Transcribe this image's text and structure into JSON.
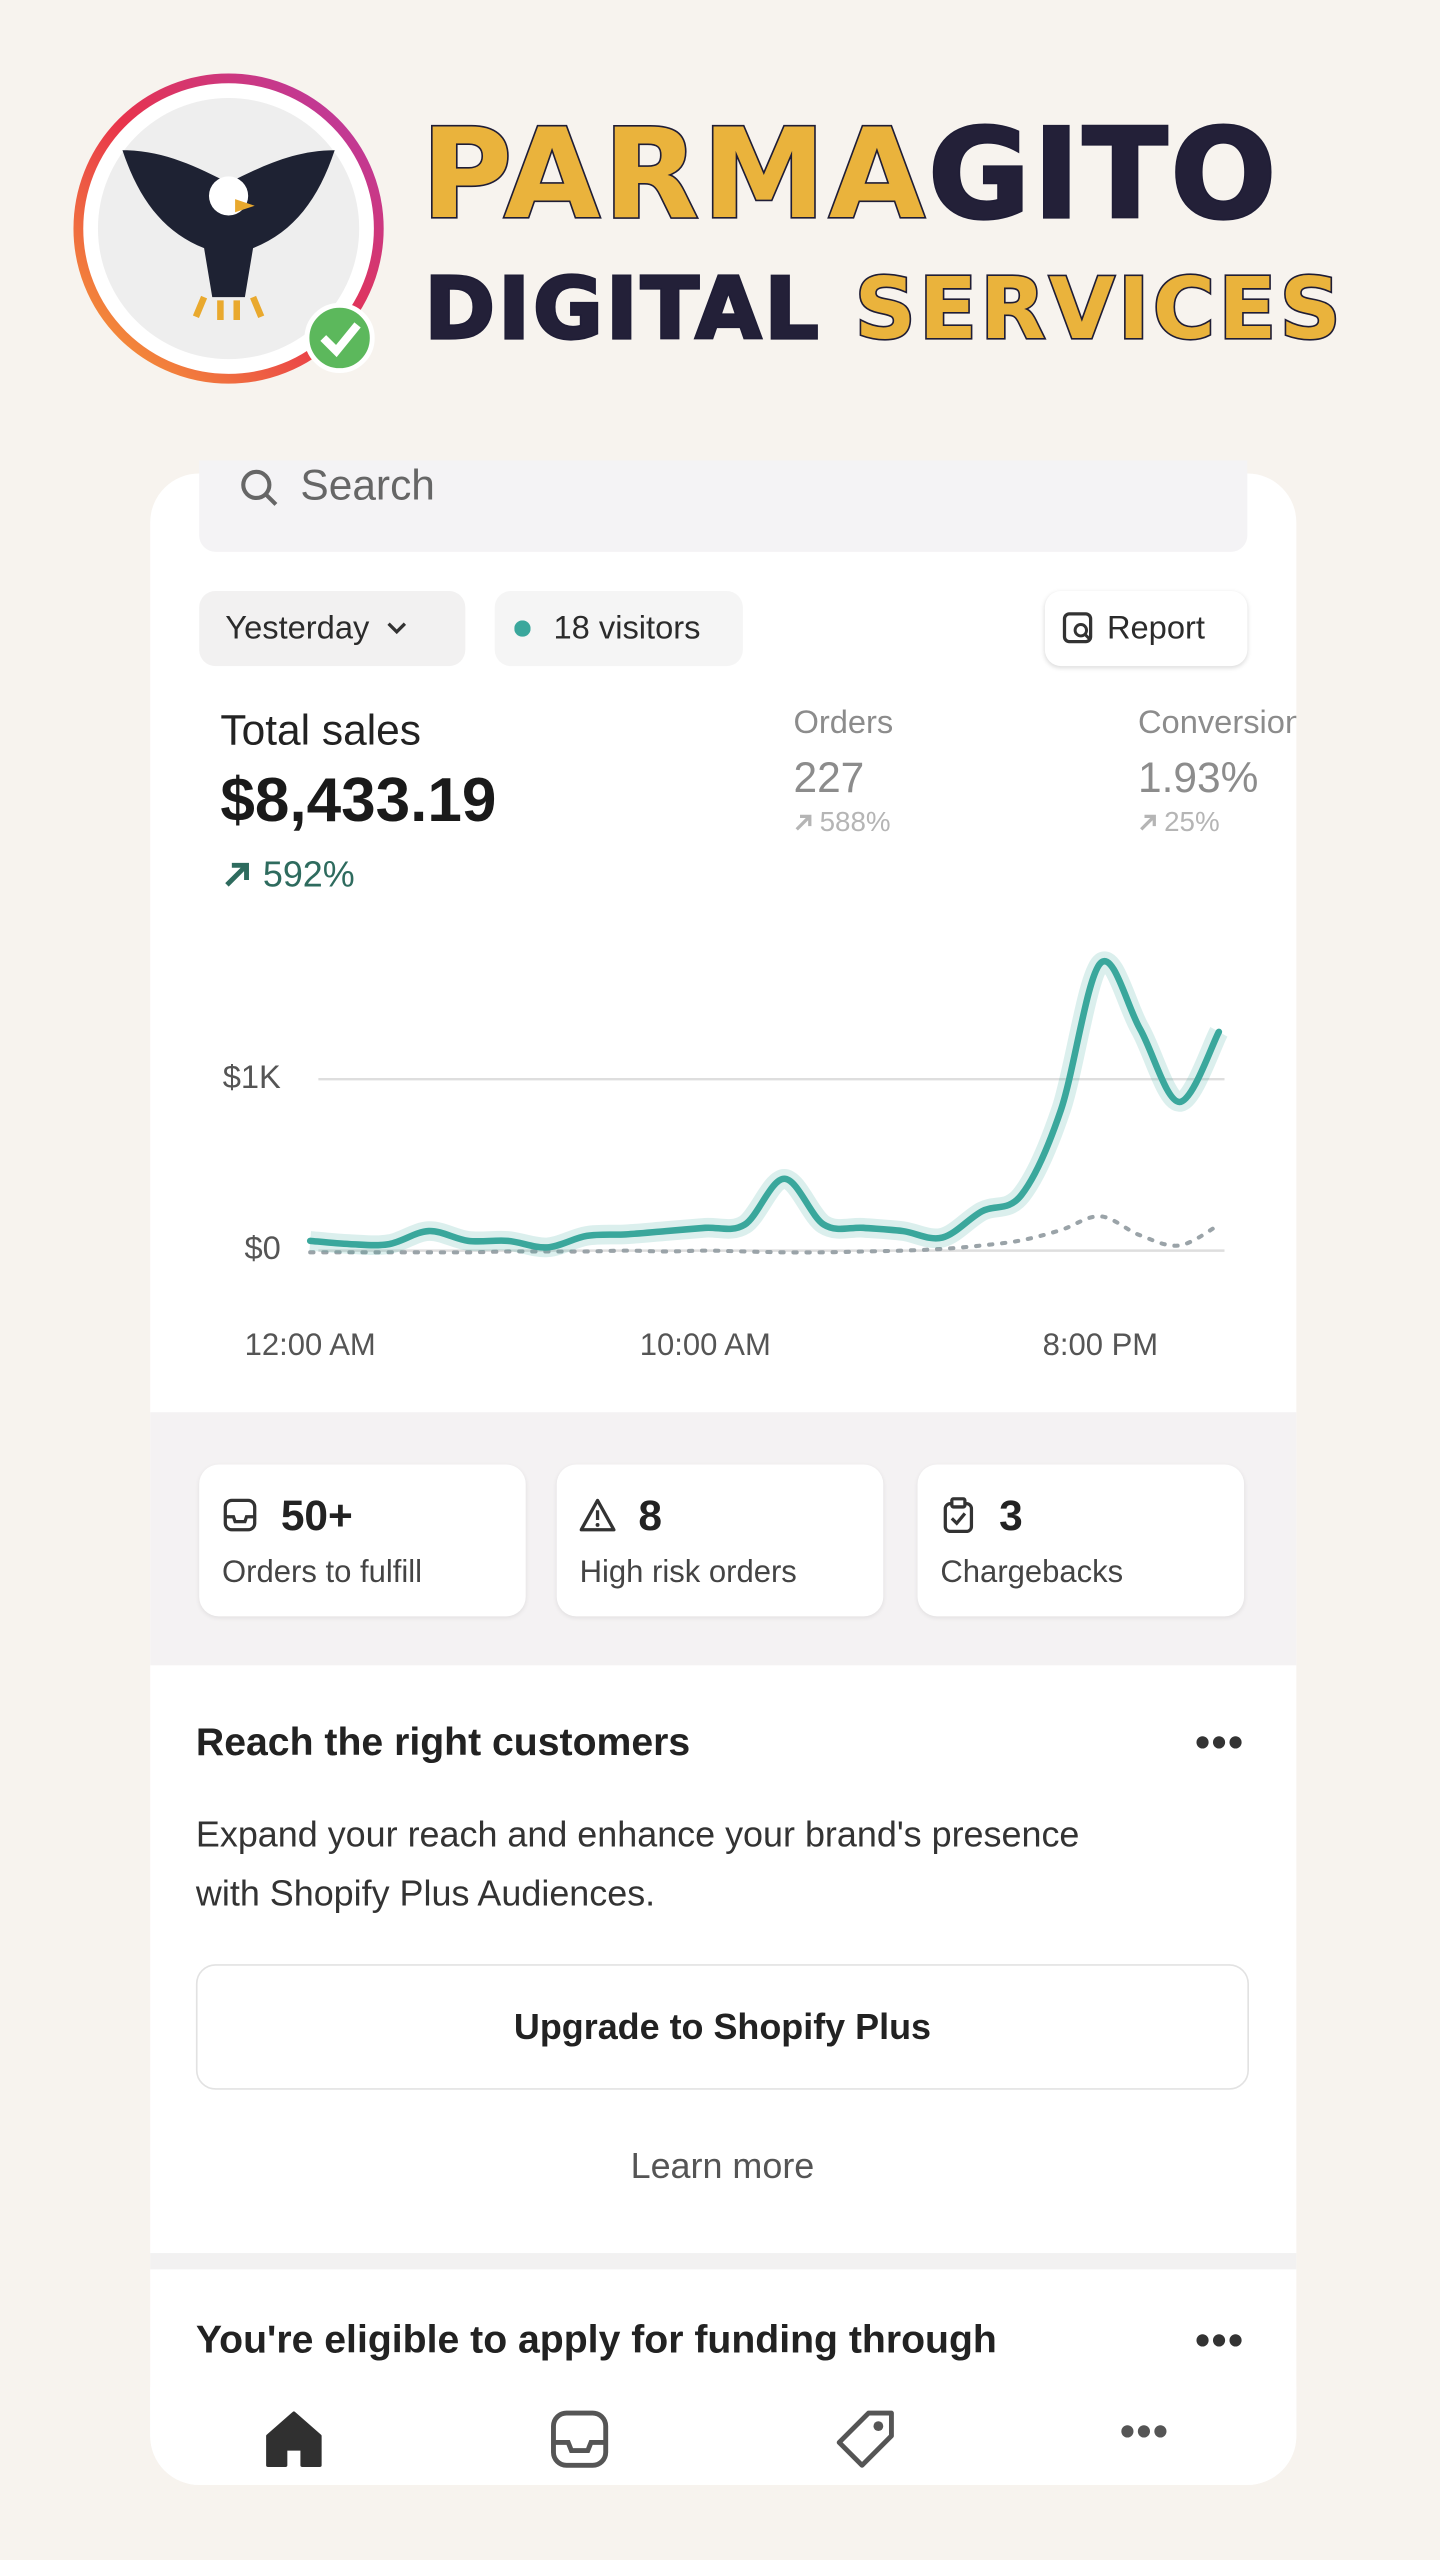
{
  "brand": {
    "name_part1": "PARMA",
    "name_part2": "GITO",
    "tagline_part1": "DIGITAL",
    "tagline_part2": "SERVICES"
  },
  "search": {
    "placeholder": "Search"
  },
  "filters": {
    "period": "Yesterday",
    "visitors": "18 visitors",
    "report": "Report"
  },
  "metrics": {
    "total_sales": {
      "label": "Total sales",
      "value": "$8,433.19",
      "change": "592%"
    },
    "orders": {
      "label": "Orders",
      "value": "227",
      "change": "588%"
    },
    "conversion": {
      "label": "Conversion",
      "value": "1.93%",
      "change": "25%"
    }
  },
  "chart_data": {
    "type": "line",
    "x": [
      0,
      1,
      2,
      3,
      4,
      5,
      6,
      7,
      8,
      9,
      10,
      11,
      12,
      13,
      14,
      15,
      16,
      17,
      18,
      19,
      20,
      21,
      22,
      23
    ],
    "series": [
      {
        "color": "#3aa79c",
        "values": [
          57,
          38,
          38,
          114,
          57,
          57,
          19,
          86,
          95,
          114,
          133,
          152,
          419,
          152,
          133,
          114,
          76,
          229,
          324,
          819,
          1676,
          1295,
          867,
          1276
        ]
      },
      {
        "color": "#9aa3a8",
        "line_style": "dotted",
        "values": [
          -10,
          -10,
          -10,
          -10,
          -10,
          -5,
          -5,
          -5,
          0,
          -5,
          0,
          -5,
          -10,
          -10,
          -5,
          0,
          10,
          30,
          60,
          120,
          200,
          90,
          30,
          150
        ]
      }
    ],
    "xlim": [
      0,
      23.2
    ],
    "ylim": [
      -100,
      1800
    ],
    "xticks": [
      {
        "value": 0,
        "label": "12:00 AM"
      },
      {
        "value": 10,
        "label": "10:00 AM"
      },
      {
        "value": 20,
        "label": "8:00 PM"
      }
    ],
    "yticks": [
      {
        "value": 0,
        "label": "$0"
      },
      {
        "value": 1000,
        "label": "$1K"
      }
    ],
    "grid": true
  },
  "tasks": [
    {
      "count": "50+",
      "label": "Orders to fulfill"
    },
    {
      "count": "8",
      "label": "High risk orders"
    },
    {
      "count": "3",
      "label": "Chargebacks"
    }
  ],
  "promo": {
    "title": "Reach the right customers",
    "body": [
      "Expand your reach and enhance your brand's presence",
      "with Shopify Plus Audiences."
    ],
    "button": "Upgrade to Shopify Plus",
    "link": "Learn more"
  },
  "funding": {
    "title": "You're eligible to apply for funding through"
  }
}
